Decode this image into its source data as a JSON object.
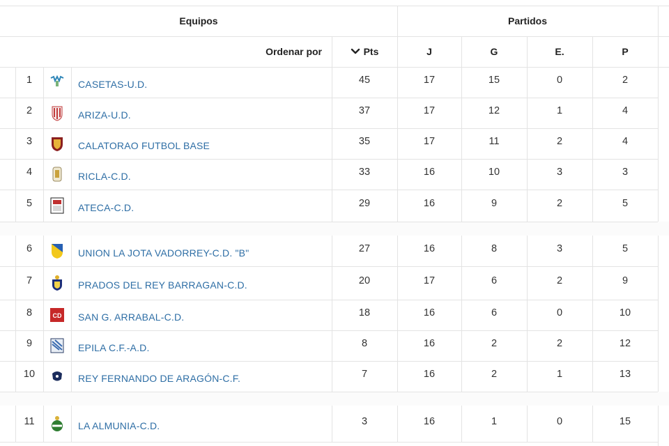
{
  "header": {
    "group_teams": "Equipos",
    "group_matches": "Partidos",
    "sort_label": "Ordenar por",
    "sort_icon": "chevron-down-icon",
    "columns": [
      "Pts",
      "J",
      "G",
      "E.",
      "P"
    ]
  },
  "rows": [
    {
      "pos": "1",
      "team": "CASETAS-U.D.",
      "pts": "45",
      "j": "17",
      "g": "15",
      "e": "0",
      "p": "2",
      "crest": "casetas-crest-icon"
    },
    {
      "pos": "2",
      "team": "ARIZA-U.D.",
      "pts": "37",
      "j": "17",
      "g": "12",
      "e": "1",
      "p": "4",
      "crest": "ariza-crest-icon"
    },
    {
      "pos": "3",
      "team": "CALATORAO FUTBOL BASE",
      "pts": "35",
      "j": "17",
      "g": "11",
      "e": "2",
      "p": "4",
      "crest": "calatorao-crest-icon"
    },
    {
      "pos": "4",
      "team": "RICLA-C.D.",
      "pts": "33",
      "j": "16",
      "g": "10",
      "e": "3",
      "p": "3",
      "crest": "ricla-crest-icon"
    },
    {
      "pos": "5",
      "team": "ATECA-C.D.",
      "pts": "29",
      "j": "16",
      "g": "9",
      "e": "2",
      "p": "5",
      "crest": "ateca-crest-icon"
    },
    {
      "pos": "6",
      "team": "UNION LA JOTA VADORREY-C.D. \"B\"",
      "pts": "27",
      "j": "16",
      "g": "8",
      "e": "3",
      "p": "5",
      "crest": "union-la-jota-crest-icon"
    },
    {
      "pos": "7",
      "team": "PRADOS DEL REY BARRAGAN-C.D.",
      "pts": "20",
      "j": "17",
      "g": "6",
      "e": "2",
      "p": "9",
      "crest": "prados-crest-icon"
    },
    {
      "pos": "8",
      "team": "SAN G. ARRABAL-C.D.",
      "pts": "18",
      "j": "16",
      "g": "6",
      "e": "0",
      "p": "10",
      "crest": "san-g-arrabal-crest-icon"
    },
    {
      "pos": "9",
      "team": "EPILA C.F.-A.D.",
      "pts": "8",
      "j": "16",
      "g": "2",
      "e": "2",
      "p": "12",
      "crest": "epila-crest-icon"
    },
    {
      "pos": "10",
      "team": "REY FERNANDO DE ARAGÓN-C.F.",
      "pts": "7",
      "j": "16",
      "g": "2",
      "e": "1",
      "p": "13",
      "crest": "rey-fernando-crest-icon"
    },
    {
      "pos": "11",
      "team": "LA ALMUNIA-C.D.",
      "pts": "3",
      "j": "16",
      "g": "1",
      "e": "0",
      "p": "15",
      "crest": "la-almunia-crest-icon"
    }
  ],
  "colors": {
    "link": "#2e6ea5",
    "grid": "#e3e3e3",
    "text": "#333333"
  }
}
